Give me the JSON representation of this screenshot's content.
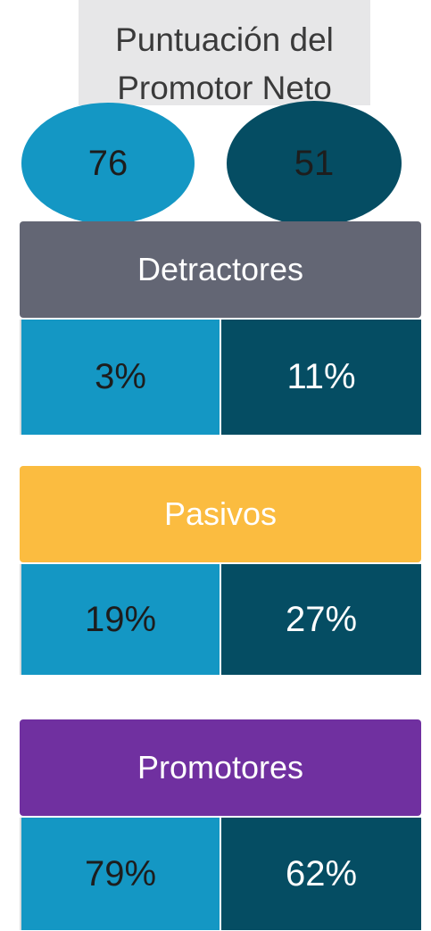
{
  "title": "Puntuación del Promotor Neto",
  "scores": [
    "76",
    "51"
  ],
  "sections": [
    {
      "label": "Detractores",
      "values": [
        "3%",
        "11%"
      ]
    },
    {
      "label": "Pasivos",
      "values": [
        "19%",
        "27%"
      ]
    },
    {
      "label": "Promotores",
      "values": [
        "79%",
        "62%"
      ]
    }
  ]
}
